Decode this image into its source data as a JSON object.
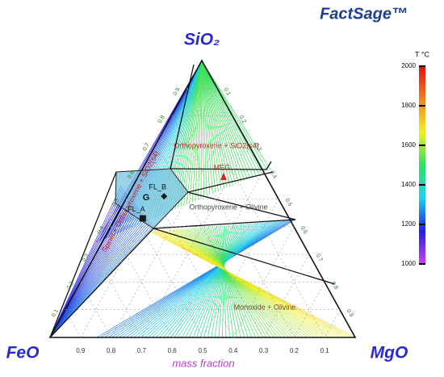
{
  "chart_data": {
    "type": "ternary",
    "vertices": {
      "top": "SiO₂",
      "left": "FeO",
      "right": "MgO"
    },
    "axis_label": "mass fraction",
    "logo": "FactSage™",
    "ticks": [
      0.1,
      0.2,
      0.3,
      0.4,
      0.5,
      0.6,
      0.7,
      0.8,
      0.9
    ],
    "regions": [
      "Orthopyroxene + SiO2(s4)",
      "Orthopyroxene + Olivine",
      "Monoxide + Olivine",
      "Spinel + Orthopyroxene + SiO2(s4)"
    ],
    "annotations": [
      "G"
    ],
    "points": [
      {
        "name": "MEG",
        "SiO2": 0.58,
        "MgO": 0.28,
        "FeO": 0.14,
        "marker": "triangle",
        "color": "#e02020"
      },
      {
        "name": "FL_B",
        "SiO2": 0.51,
        "MgO": 0.12,
        "FeO": 0.37,
        "marker": "diamond",
        "color": "#1a1a1a"
      },
      {
        "name": "FL_A",
        "SiO2": 0.43,
        "MgO": 0.09,
        "FeO": 0.48,
        "marker": "square",
        "color": "#1a1a1a"
      }
    ],
    "colorbar": {
      "title": "T °C",
      "lim": [
        1000,
        2000
      ],
      "ticks": [
        1000,
        1200,
        1400,
        1600,
        1800,
        2000
      ],
      "colors": [
        "#d040f0",
        "#2020e0",
        "#20d0f0",
        "#30e060",
        "#f0f020",
        "#f08020",
        "#e01010"
      ]
    }
  }
}
